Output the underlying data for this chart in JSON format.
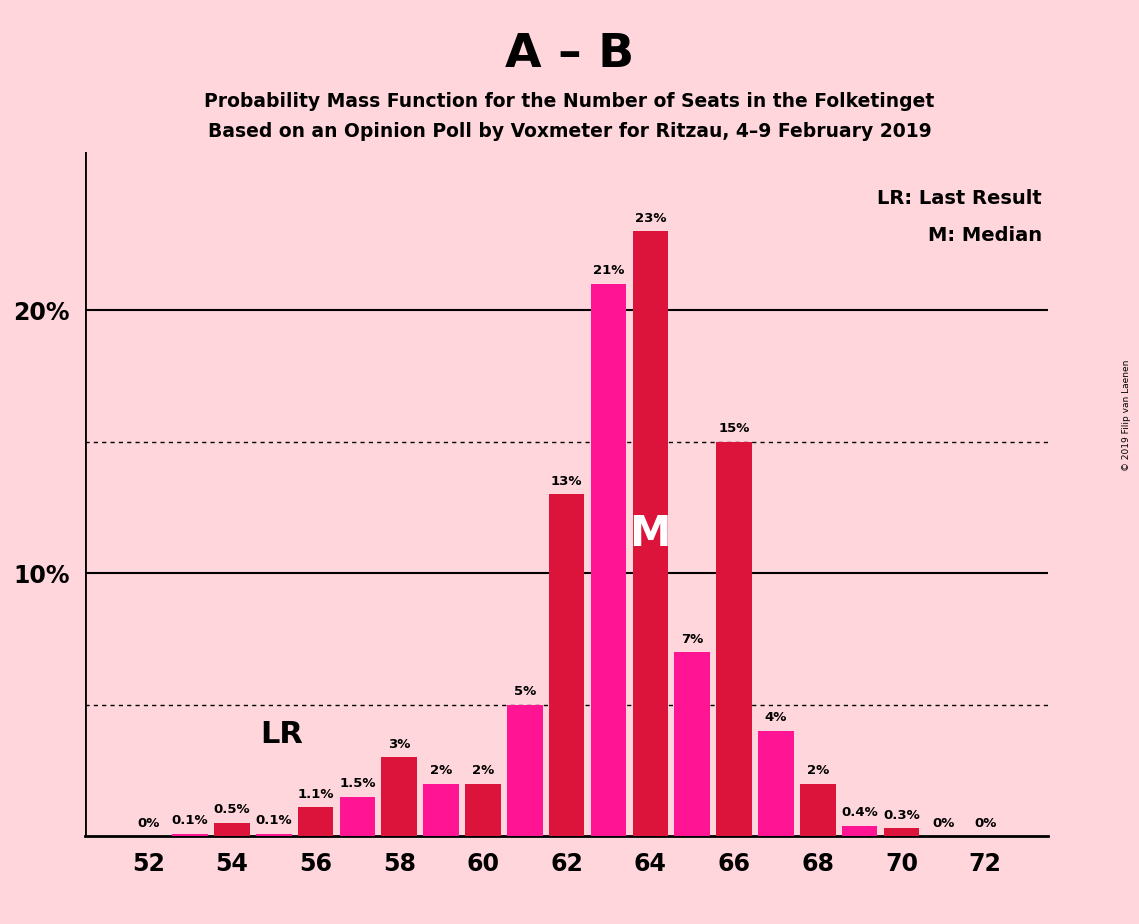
{
  "title_main": "A – B",
  "subtitle1": "Probability Mass Function for the Number of Seats in the Folketinget",
  "subtitle2": "Based on an Opinion Poll by Voxmeter for Ritzau, 4–9 February 2019",
  "copyright": "© 2019 Filip van Laenen",
  "seats": [
    52,
    53,
    54,
    55,
    56,
    57,
    58,
    59,
    60,
    61,
    62,
    63,
    64,
    65,
    66,
    67,
    68,
    69,
    70,
    71,
    72
  ],
  "values": [
    0.0,
    0.1,
    0.5,
    0.1,
    1.1,
    1.5,
    3.0,
    2.0,
    2.0,
    5.0,
    13.0,
    21.0,
    23.0,
    7.0,
    15.0,
    4.0,
    2.0,
    0.4,
    0.3,
    0.0,
    0.0
  ],
  "labels": [
    "0%",
    "0.1%",
    "0.5%",
    "0.1%",
    "1.1%",
    "1.5%",
    "3%",
    "2%",
    "2%",
    "5%",
    "13%",
    "21%",
    "23%",
    "7%",
    "15%",
    "4%",
    "2%",
    "0.4%",
    "0.3%",
    "0%",
    "0%"
  ],
  "bg_color": "#FFD6DC",
  "bar_crimson": "#DC143C",
  "bar_magenta": "#FF1493",
  "lr_seat": 54,
  "median_seat": 64,
  "ylim": [
    0,
    26
  ],
  "xtick_positions": [
    52,
    54,
    56,
    58,
    60,
    62,
    64,
    66,
    68,
    70,
    72
  ],
  "legend_lr": "LR: Last Result",
  "legend_m": "M: Median",
  "solid_lines": [
    10,
    20
  ],
  "dotted_lines": [
    5,
    15
  ]
}
